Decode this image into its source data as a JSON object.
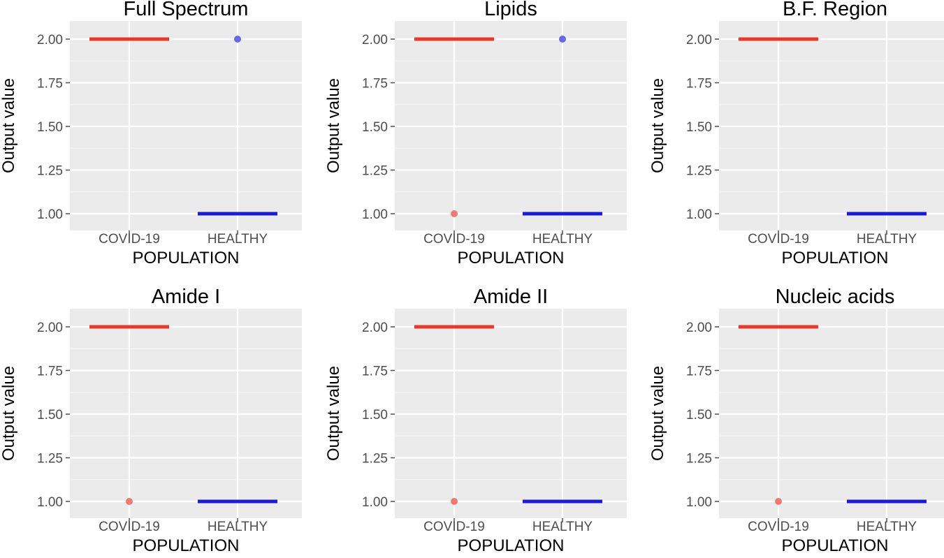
{
  "chart_data": [
    {
      "type": "boxplot",
      "title": "Full Spectrum",
      "xlabel": "POPULATION",
      "ylabel": "Output value",
      "categories": [
        "COVID-19",
        "HEALTHY"
      ],
      "yticks": [
        "1.00",
        "1.25",
        "1.50",
        "1.75",
        "2.00"
      ],
      "ylim": [
        1.0,
        2.0
      ],
      "series": [
        {
          "name": "COVID-19",
          "color": "#e8382c",
          "median": 2,
          "outliers": []
        },
        {
          "name": "HEALTHY",
          "color": "#1b1bd6",
          "median": 1,
          "outliers": [
            2
          ]
        }
      ]
    },
    {
      "type": "boxplot",
      "title": "Lipids",
      "xlabel": "POPULATION",
      "ylabel": "Output value",
      "categories": [
        "COVID-19",
        "HEALTHY"
      ],
      "yticks": [
        "1.00",
        "1.25",
        "1.50",
        "1.75",
        "2.00"
      ],
      "ylim": [
        1.0,
        2.0
      ],
      "series": [
        {
          "name": "COVID-19",
          "color": "#e8382c",
          "median": 2,
          "outliers": [
            1
          ]
        },
        {
          "name": "HEALTHY",
          "color": "#1b1bd6",
          "median": 1,
          "outliers": [
            2
          ]
        }
      ]
    },
    {
      "type": "boxplot",
      "title": "B.F. Region",
      "xlabel": "POPULATION",
      "ylabel": "Output value",
      "categories": [
        "COVID-19",
        "HEALTHY"
      ],
      "yticks": [
        "1.00",
        "1.25",
        "1.50",
        "1.75",
        "2.00"
      ],
      "ylim": [
        1.0,
        2.0
      ],
      "series": [
        {
          "name": "COVID-19",
          "color": "#e8382c",
          "median": 2,
          "outliers": []
        },
        {
          "name": "HEALTHY",
          "color": "#1b1bd6",
          "median": 1,
          "outliers": []
        }
      ]
    },
    {
      "type": "boxplot",
      "title": "Amide I",
      "xlabel": "POPULATION",
      "ylabel": "Output value",
      "categories": [
        "COVID-19",
        "HEALTHY"
      ],
      "yticks": [
        "1.00",
        "1.25",
        "1.50",
        "1.75",
        "2.00"
      ],
      "ylim": [
        1.0,
        2.0
      ],
      "series": [
        {
          "name": "COVID-19",
          "color": "#e8382c",
          "median": 2,
          "outliers": [
            1
          ]
        },
        {
          "name": "HEALTHY",
          "color": "#1b1bd6",
          "median": 1,
          "outliers": []
        }
      ]
    },
    {
      "type": "boxplot",
      "title": "Amide II",
      "xlabel": "POPULATION",
      "ylabel": "Output value",
      "categories": [
        "COVID-19",
        "HEALTHY"
      ],
      "yticks": [
        "1.00",
        "1.25",
        "1.50",
        "1.75",
        "2.00"
      ],
      "ylim": [
        1.0,
        2.0
      ],
      "series": [
        {
          "name": "COVID-19",
          "color": "#e8382c",
          "median": 2,
          "outliers": [
            1
          ]
        },
        {
          "name": "HEALTHY",
          "color": "#1b1bd6",
          "median": 1,
          "outliers": []
        }
      ]
    },
    {
      "type": "boxplot",
      "title": "Nucleic acids",
      "xlabel": "POPULATION",
      "ylabel": "Output value",
      "categories": [
        "COVID-19",
        "HEALTHY"
      ],
      "yticks": [
        "1.00",
        "1.25",
        "1.50",
        "1.75",
        "2.00"
      ],
      "ylim": [
        1.0,
        2.0
      ],
      "series": [
        {
          "name": "COVID-19",
          "color": "#e8382c",
          "median": 2,
          "outliers": [
            1
          ]
        },
        {
          "name": "HEALTHY",
          "color": "#1b1bd6",
          "median": 1,
          "outliers": []
        }
      ]
    }
  ]
}
